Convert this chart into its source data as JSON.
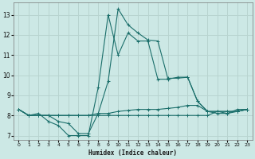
{
  "xlabel": "Humidex (Indice chaleur)",
  "bg_color": "#cce8e5",
  "grid_color": "#b8d4d0",
  "line_color": "#1a6e6a",
  "xlim": [
    -0.5,
    23.5
  ],
  "ylim": [
    6.8,
    13.6
  ],
  "yticks": [
    7,
    8,
    9,
    10,
    11,
    12,
    13
  ],
  "xticks": [
    0,
    1,
    2,
    3,
    4,
    5,
    6,
    7,
    8,
    9,
    10,
    11,
    12,
    13,
    14,
    15,
    16,
    17,
    18,
    19,
    20,
    21,
    22,
    23
  ],
  "series": [
    {
      "x": [
        0,
        1,
        2,
        3,
        4,
        5,
        6,
        7,
        8,
        9,
        10,
        11,
        12,
        13,
        14,
        15,
        16,
        17,
        18,
        19,
        20,
        21,
        22,
        23
      ],
      "y": [
        8.3,
        8.0,
        8.0,
        8.0,
        7.7,
        7.6,
        7.1,
        7.1,
        8.1,
        9.7,
        13.3,
        12.5,
        12.1,
        11.75,
        11.7,
        9.85,
        9.85,
        9.9,
        8.7,
        8.2,
        8.2,
        8.1,
        8.2,
        8.3
      ]
    },
    {
      "x": [
        0,
        1,
        2,
        3,
        4,
        5,
        6,
        7,
        8,
        9,
        10,
        11,
        12,
        13,
        14,
        15,
        16,
        17,
        18,
        19,
        20,
        21,
        22,
        23
      ],
      "y": [
        8.3,
        8.0,
        8.1,
        7.7,
        7.5,
        7.0,
        7.0,
        7.0,
        9.4,
        13.0,
        11.0,
        12.1,
        11.7,
        11.7,
        9.8,
        9.8,
        9.9,
        9.9,
        8.7,
        8.2,
        8.1,
        8.1,
        8.3,
        8.3
      ]
    },
    {
      "x": [
        0,
        1,
        2,
        3,
        4,
        5,
        6,
        7,
        8,
        9,
        10,
        11,
        12,
        13,
        14,
        15,
        16,
        17,
        18,
        19,
        20,
        21,
        22,
        23
      ],
      "y": [
        8.3,
        8.0,
        8.0,
        8.0,
        8.0,
        8.0,
        8.0,
        8.0,
        8.1,
        8.1,
        8.2,
        8.25,
        8.3,
        8.3,
        8.3,
        8.35,
        8.4,
        8.5,
        8.5,
        8.2,
        8.2,
        8.2,
        8.2,
        8.3
      ]
    },
    {
      "x": [
        0,
        1,
        2,
        3,
        4,
        5,
        6,
        7,
        8,
        9,
        10,
        11,
        12,
        13,
        14,
        15,
        16,
        17,
        18,
        19,
        20,
        21,
        22,
        23
      ],
      "y": [
        8.3,
        8.0,
        8.0,
        8.0,
        8.0,
        8.0,
        8.0,
        8.0,
        8.0,
        8.0,
        8.0,
        8.0,
        8.0,
        8.0,
        8.0,
        8.0,
        8.0,
        8.0,
        8.0,
        8.0,
        8.2,
        8.2,
        8.2,
        8.3
      ]
    }
  ]
}
